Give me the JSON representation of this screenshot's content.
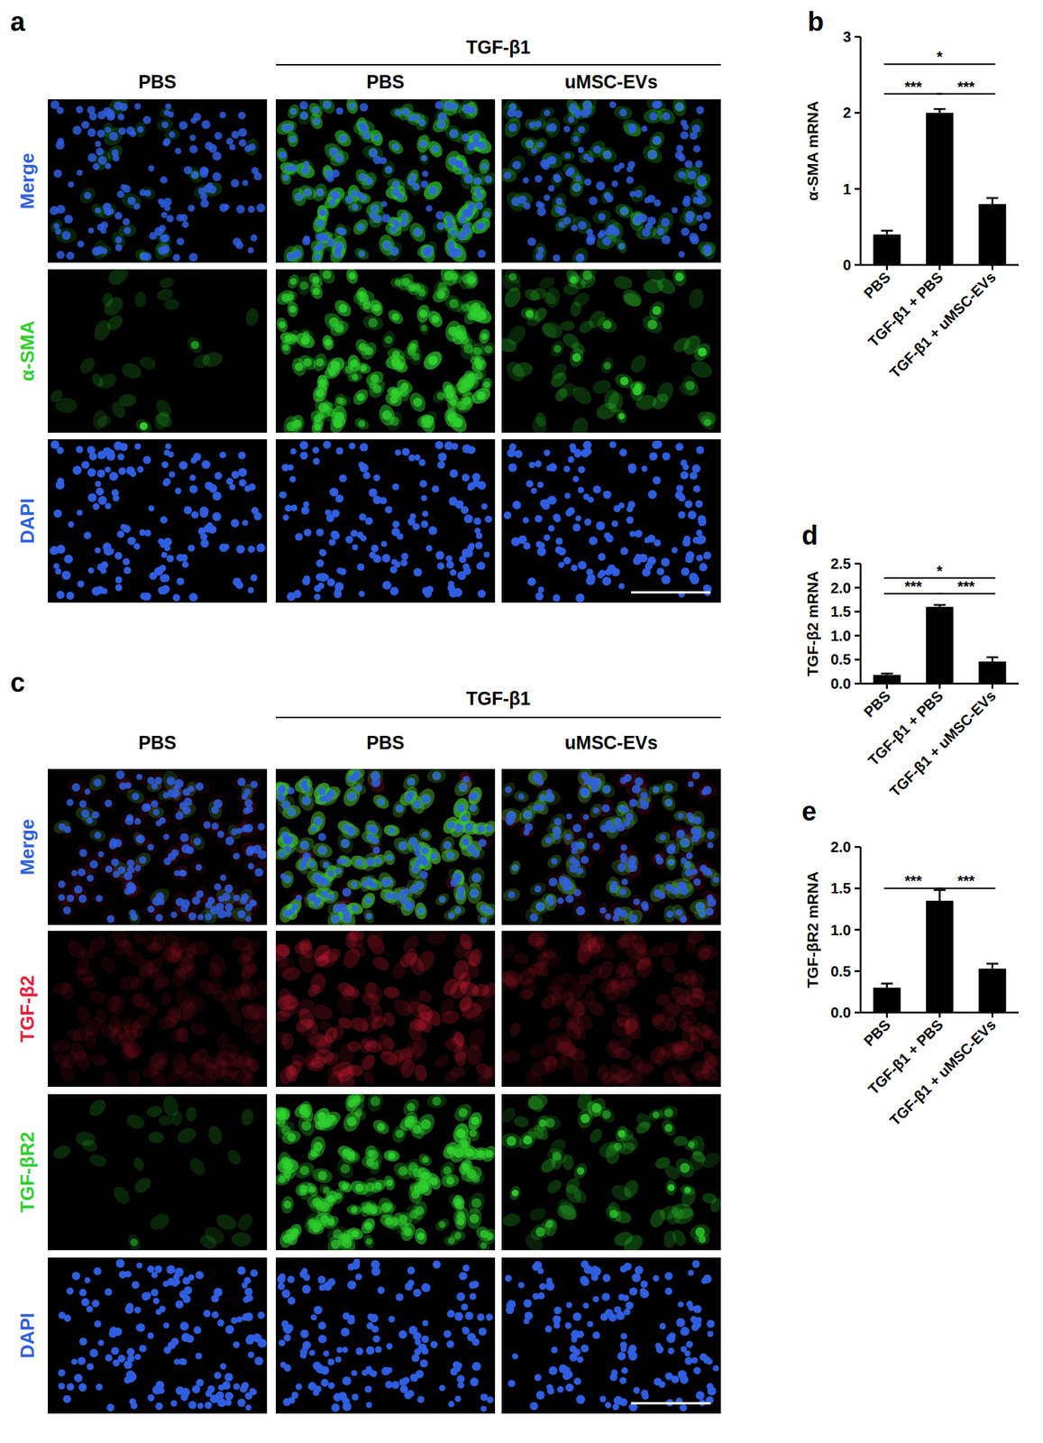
{
  "panels": [
    {
      "label": "a",
      "group_header": "TGF-β1",
      "columns": [
        "PBS",
        "PBS",
        "uMSC-EVs"
      ],
      "rows": [
        {
          "label": "Merge",
          "color": "#2f5fe0"
        },
        {
          "label": "α-SMA",
          "color": "#2fcf2f"
        },
        {
          "label": "DAPI",
          "color": "#2f5fe0"
        }
      ]
    },
    {
      "label": "c",
      "group_header": "TGF-β1",
      "columns": [
        "PBS",
        "PBS",
        "uMSC-EVs"
      ],
      "rows": [
        {
          "label": "Merge",
          "color": "#2f5fe0"
        },
        {
          "label": "TGF-β2",
          "color": "#e8203a"
        },
        {
          "label": "TGF-βR2",
          "color": "#2fcf2f"
        },
        {
          "label": "DAPI",
          "color": "#2f5fe0"
        }
      ]
    }
  ],
  "chart_data": [
    {
      "title": "b",
      "type": "bar",
      "y_label": "α-SMA mRNA",
      "categories": [
        "PBS",
        "TGF-β1 + PBS",
        "TGF-β1 + uMSC-EVs"
      ],
      "values": [
        0.4,
        2.0,
        0.8
      ],
      "errors": [
        0.05,
        0.05,
        0.08
      ],
      "color": "#000000",
      "ylim": [
        0,
        3
      ],
      "yticks": [
        0,
        1,
        2,
        3
      ],
      "significance": [
        {
          "from": "PBS",
          "to": "TGF-β1 + uMSC-EVs",
          "label": "*"
        },
        {
          "from": "PBS",
          "to": "TGF-β1 + PBS",
          "label": "***"
        },
        {
          "from": "TGF-β1 + PBS",
          "to": "TGF-β1 + uMSC-EVs",
          "label": "***"
        }
      ]
    },
    {
      "title": "d",
      "type": "bar",
      "y_label": "TGF-β2 mRNA",
      "categories": [
        "PBS",
        "TGF-β1 + PBS",
        "TGF-β1 + uMSC-EVs"
      ],
      "values": [
        0.18,
        1.6,
        0.46
      ],
      "errors": [
        0.03,
        0.04,
        0.09
      ],
      "color": "#000000",
      "ylim": [
        0,
        2.5
      ],
      "yticks": [
        {
          "value": 0,
          "label": "0.0"
        },
        0.5,
        {
          "value": 1,
          "label": "1.0"
        },
        1.5,
        {
          "value": 2,
          "label": "2.0"
        },
        2.5
      ],
      "significance": [
        {
          "from": "PBS",
          "to": "TGF-β1 + uMSC-EVs",
          "label": "*"
        },
        {
          "from": "PBS",
          "to": "TGF-β1 + PBS",
          "label": "***"
        },
        {
          "from": "TGF-β1 + PBS",
          "to": "TGF-β1 + uMSC-EVs",
          "label": "***"
        }
      ]
    },
    {
      "title": "e",
      "type": "bar",
      "y_label": "TGF-βR2 mRNA",
      "categories": [
        "PBS",
        "TGF-β1 + PBS",
        "TGF-β1 + uMSC-EVs"
      ],
      "values": [
        0.3,
        1.35,
        0.53
      ],
      "errors": [
        0.05,
        0.13,
        0.06
      ],
      "color": "#000000",
      "ylim": [
        0,
        2
      ],
      "yticks": [
        {
          "value": 0,
          "label": "0.0"
        },
        0.5,
        {
          "value": 1,
          "label": "1.0"
        },
        1.5,
        {
          "value": 2,
          "label": "2.0"
        }
      ],
      "significance": [
        {
          "from": "PBS",
          "to": "TGF-β1 + PBS",
          "label": "***"
        },
        {
          "from": "TGF-β1 + PBS",
          "to": "TGF-β1 + uMSC-EVs",
          "label": "***"
        }
      ]
    }
  ]
}
